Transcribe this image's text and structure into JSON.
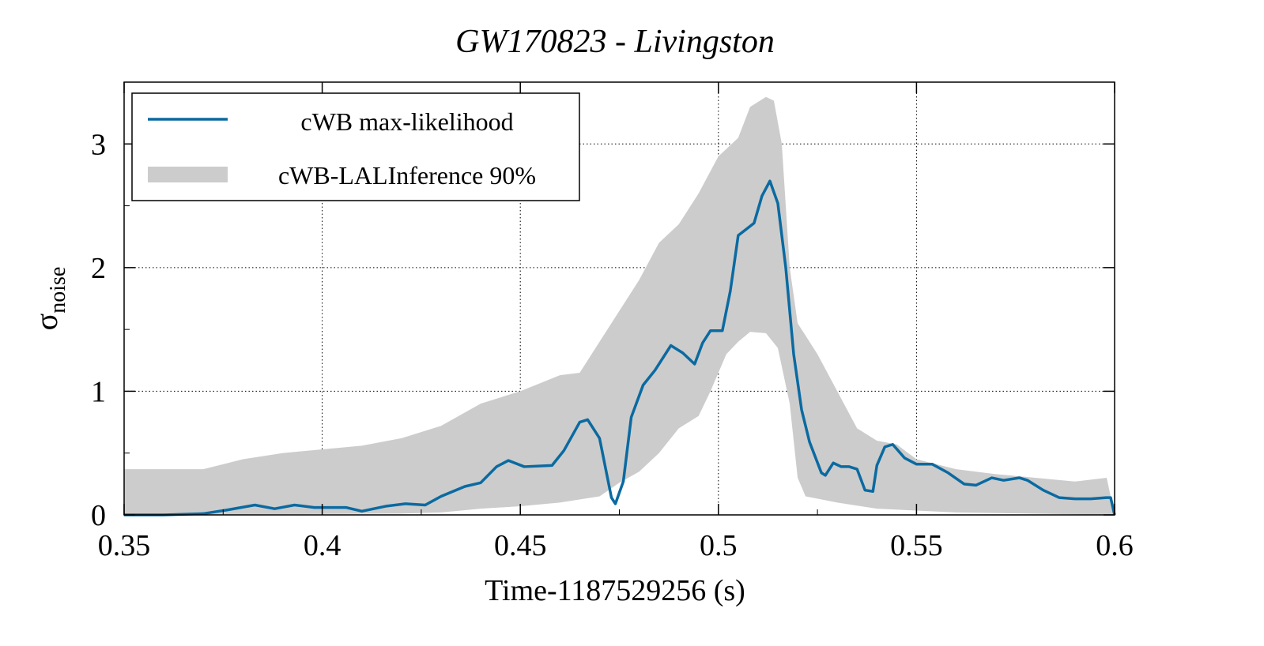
{
  "chart_data": {
    "type": "line",
    "title": "GW170823 - Livingston",
    "xlabel": "Time-1187529256 (s)",
    "ylabel_main": "σ",
    "ylabel_sub": "noise",
    "xlim": [
      0.35,
      0.6
    ],
    "ylim": [
      0,
      3.5
    ],
    "xticks": [
      0.35,
      0.4,
      0.45,
      0.5,
      0.55,
      0.6
    ],
    "xtick_labels": [
      "0.35",
      "0.4",
      "0.45",
      "0.5",
      "0.55",
      "0.6"
    ],
    "yticks": [
      0,
      1,
      2,
      3
    ],
    "ytick_labels": [
      "0",
      "1",
      "2",
      "3"
    ],
    "grid": true,
    "legend_position": "top-left",
    "colors": {
      "line": "#0a6aa1",
      "band": "#cccccc"
    },
    "series": [
      {
        "name": "cWB max-likelihood",
        "kind": "line",
        "x": [
          0.35,
          0.36,
          0.37,
          0.376,
          0.383,
          0.388,
          0.393,
          0.398,
          0.406,
          0.41,
          0.416,
          0.421,
          0.426,
          0.43,
          0.436,
          0.44,
          0.444,
          0.447,
          0.451,
          0.458,
          0.461,
          0.465,
          0.467,
          0.47,
          0.473,
          0.474,
          0.476,
          0.478,
          0.481,
          0.484,
          0.488,
          0.491,
          0.494,
          0.496,
          0.498,
          0.501,
          0.503,
          0.505,
          0.507,
          0.509,
          0.511,
          0.513,
          0.515,
          0.517,
          0.519,
          0.521,
          0.523,
          0.526,
          0.527,
          0.529,
          0.531,
          0.533,
          0.535,
          0.537,
          0.539,
          0.54,
          0.542,
          0.544,
          0.547,
          0.55,
          0.554,
          0.558,
          0.562,
          0.565,
          0.569,
          0.572,
          0.576,
          0.578,
          0.582,
          0.586,
          0.59,
          0.594,
          0.598,
          0.599,
          0.6
        ],
        "y": [
          0,
          0,
          0.01,
          0.04,
          0.08,
          0.05,
          0.08,
          0.06,
          0.06,
          0.03,
          0.07,
          0.09,
          0.08,
          0.15,
          0.23,
          0.26,
          0.39,
          0.44,
          0.39,
          0.4,
          0.52,
          0.75,
          0.77,
          0.62,
          0.14,
          0.09,
          0.27,
          0.79,
          1.05,
          1.17,
          1.37,
          1.31,
          1.22,
          1.39,
          1.49,
          1.49,
          1.81,
          2.26,
          2.31,
          2.36,
          2.58,
          2.7,
          2.52,
          2.0,
          1.3,
          0.85,
          0.59,
          0.34,
          0.32,
          0.42,
          0.39,
          0.39,
          0.37,
          0.2,
          0.19,
          0.4,
          0.55,
          0.57,
          0.46,
          0.41,
          0.41,
          0.34,
          0.25,
          0.24,
          0.3,
          0.28,
          0.3,
          0.28,
          0.2,
          0.14,
          0.13,
          0.13,
          0.14,
          0.14,
          0
        ]
      },
      {
        "name": "cWB-LALInference 90%",
        "kind": "band",
        "upper_x": [
          0.35,
          0.37,
          0.38,
          0.39,
          0.4,
          0.41,
          0.42,
          0.43,
          0.44,
          0.45,
          0.46,
          0.465,
          0.47,
          0.475,
          0.48,
          0.485,
          0.49,
          0.495,
          0.5,
          0.505,
          0.508,
          0.512,
          0.514,
          0.516,
          0.518,
          0.52,
          0.525,
          0.53,
          0.535,
          0.54,
          0.545,
          0.55,
          0.56,
          0.57,
          0.58,
          0.59,
          0.598,
          0.6
        ],
        "upper_y": [
          0.37,
          0.37,
          0.45,
          0.5,
          0.53,
          0.56,
          0.62,
          0.72,
          0.9,
          1.0,
          1.13,
          1.15,
          1.4,
          1.65,
          1.9,
          2.2,
          2.35,
          2.6,
          2.9,
          3.05,
          3.3,
          3.38,
          3.35,
          3.0,
          2.0,
          1.55,
          1.3,
          1.0,
          0.7,
          0.6,
          0.57,
          0.45,
          0.37,
          0.33,
          0.3,
          0.27,
          0.3,
          0
        ],
        "lower_x": [
          0.35,
          0.42,
          0.43,
          0.44,
          0.45,
          0.46,
          0.47,
          0.475,
          0.48,
          0.485,
          0.49,
          0.495,
          0.498,
          0.502,
          0.505,
          0.508,
          0.512,
          0.515,
          0.518,
          0.52,
          0.522,
          0.53,
          0.54,
          0.56,
          0.6
        ],
        "lower_y": [
          0,
          0.01,
          0.02,
          0.05,
          0.07,
          0.1,
          0.15,
          0.26,
          0.35,
          0.5,
          0.7,
          0.8,
          1.0,
          1.3,
          1.4,
          1.48,
          1.47,
          1.35,
          0.9,
          0.3,
          0.15,
          0.1,
          0.05,
          0.02,
          0
        ]
      }
    ]
  }
}
